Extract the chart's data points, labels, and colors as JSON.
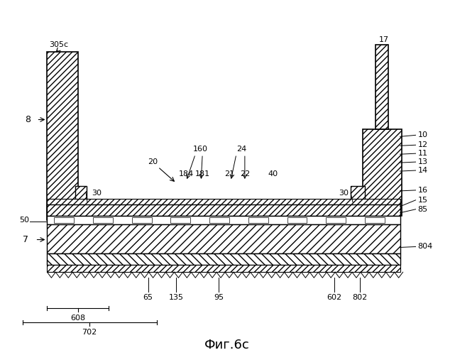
{
  "title": "Фиг.6с",
  "background_color": "#ffffff",
  "fig_width": 6.41,
  "fig_height": 5.0,
  "dpi": 100
}
